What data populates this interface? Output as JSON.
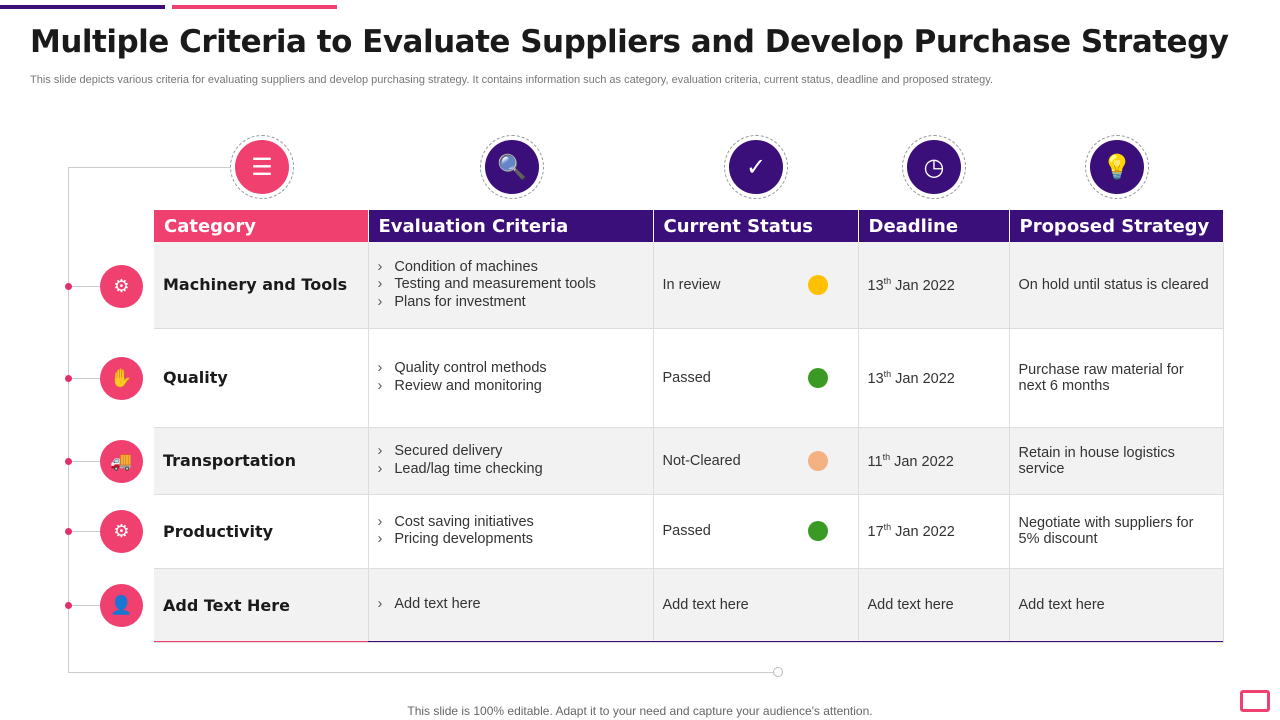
{
  "title": "Multiple Criteria to Evaluate Suppliers and Develop Purchase Strategy",
  "subtitle": "This slide depicts various criteria for evaluating suppliers and develop purchasing strategy. It contains information such as category, evaluation criteria, current status, deadline and proposed strategy.",
  "colors": {
    "pink": "#f0406f",
    "purple": "#3b0f7a",
    "yellow": "#ffc000",
    "green": "#3a9a24",
    "peach": "#f4b183"
  },
  "headers": [
    "Category",
    "Evaluation Criteria",
    "Current Status",
    "Deadline",
    "Proposed Strategy"
  ],
  "header_icons": [
    "list-icon",
    "checklist-search-icon",
    "check-circle-icon",
    "fast-clock-icon",
    "idea-bulb-icon"
  ],
  "rows": [
    {
      "icon": "robot-arm-icon",
      "category": "Machinery and Tools",
      "criteria": [
        "Condition of machines",
        "Testing and measurement tools",
        "Plans for investment"
      ],
      "status": "In review",
      "status_color": "#ffc000",
      "deadline_day": "13",
      "deadline_sup": "th",
      "deadline_rest": " Jan 2022",
      "strategy": "On hold until status is cleared"
    },
    {
      "icon": "quality-hands-icon",
      "category": "Quality",
      "criteria": [
        "Quality control methods",
        "Review and monitoring"
      ],
      "status": "Passed",
      "status_color": "#3a9a24",
      "deadline_day": "13",
      "deadline_sup": "th",
      "deadline_rest": " Jan 2022",
      "strategy": "Purchase raw material for next 6 months"
    },
    {
      "icon": "truck-icon",
      "category": "Transportation",
      "criteria": [
        "Secured delivery",
        "Lead/lag time checking"
      ],
      "status": "Not-Cleared",
      "status_color": "#f4b183",
      "deadline_day": "11",
      "deadline_sup": "th",
      "deadline_rest": " Jan 2022",
      "strategy": "Retain in house logistics service"
    },
    {
      "icon": "gears-icon",
      "category": "Productivity",
      "criteria": [
        "Cost saving initiatives",
        "Pricing developments"
      ],
      "status": "Passed",
      "status_color": "#3a9a24",
      "deadline_day": "17",
      "deadline_sup": "th",
      "deadline_rest": " Jan 2022",
      "strategy": "Negotiate with suppliers for 5% discount"
    },
    {
      "icon": "person-board-icon",
      "category": "Add Text Here",
      "criteria": [
        "Add text here"
      ],
      "status": "Add text here",
      "status_color": null,
      "deadline_text": "Add text here",
      "strategy": "Add text here"
    }
  ],
  "footer": "This slide is 100% editable. Adapt it to your need and capture your audience's attention."
}
